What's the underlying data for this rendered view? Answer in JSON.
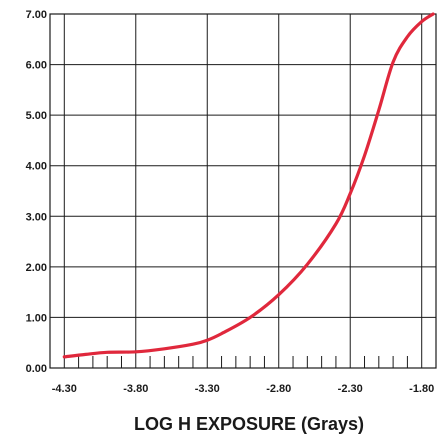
{
  "chart_data": {
    "type": "line",
    "title": "",
    "xlabel": "LOG H EXPOSURE (Grays)",
    "ylabel": "",
    "xlim": [
      -4.4,
      -1.7
    ],
    "ylim": [
      0,
      7
    ],
    "x_ticks": [
      -4.3,
      -3.8,
      -3.3,
      -2.8,
      -2.3,
      -1.8
    ],
    "x_tick_labels": [
      "-4.30",
      "-3.80",
      "-3.30",
      "-2.80",
      "-2.30",
      "-1.80"
    ],
    "y_ticks": [
      0,
      1,
      2,
      3,
      4,
      5,
      6,
      7
    ],
    "y_tick_labels": [
      "0.00",
      "1.00",
      "2.00",
      "3.00",
      "4.00",
      "5.00",
      "6.00",
      "7.00"
    ],
    "grid": true,
    "series": [
      {
        "color": "#e0283c",
        "x": [
          -4.3,
          -4.15,
          -4.0,
          -3.8,
          -3.6,
          -3.4,
          -3.3,
          -3.2,
          -3.0,
          -2.8,
          -2.6,
          -2.4,
          -2.3,
          -2.2,
          -2.1,
          -2.0,
          -1.9,
          -1.8,
          -1.72
        ],
        "y": [
          0.22,
          0.27,
          0.31,
          0.32,
          0.38,
          0.47,
          0.55,
          0.68,
          1.0,
          1.45,
          2.05,
          2.85,
          3.45,
          4.2,
          5.1,
          6.05,
          6.55,
          6.85,
          7.0
        ]
      }
    ]
  }
}
